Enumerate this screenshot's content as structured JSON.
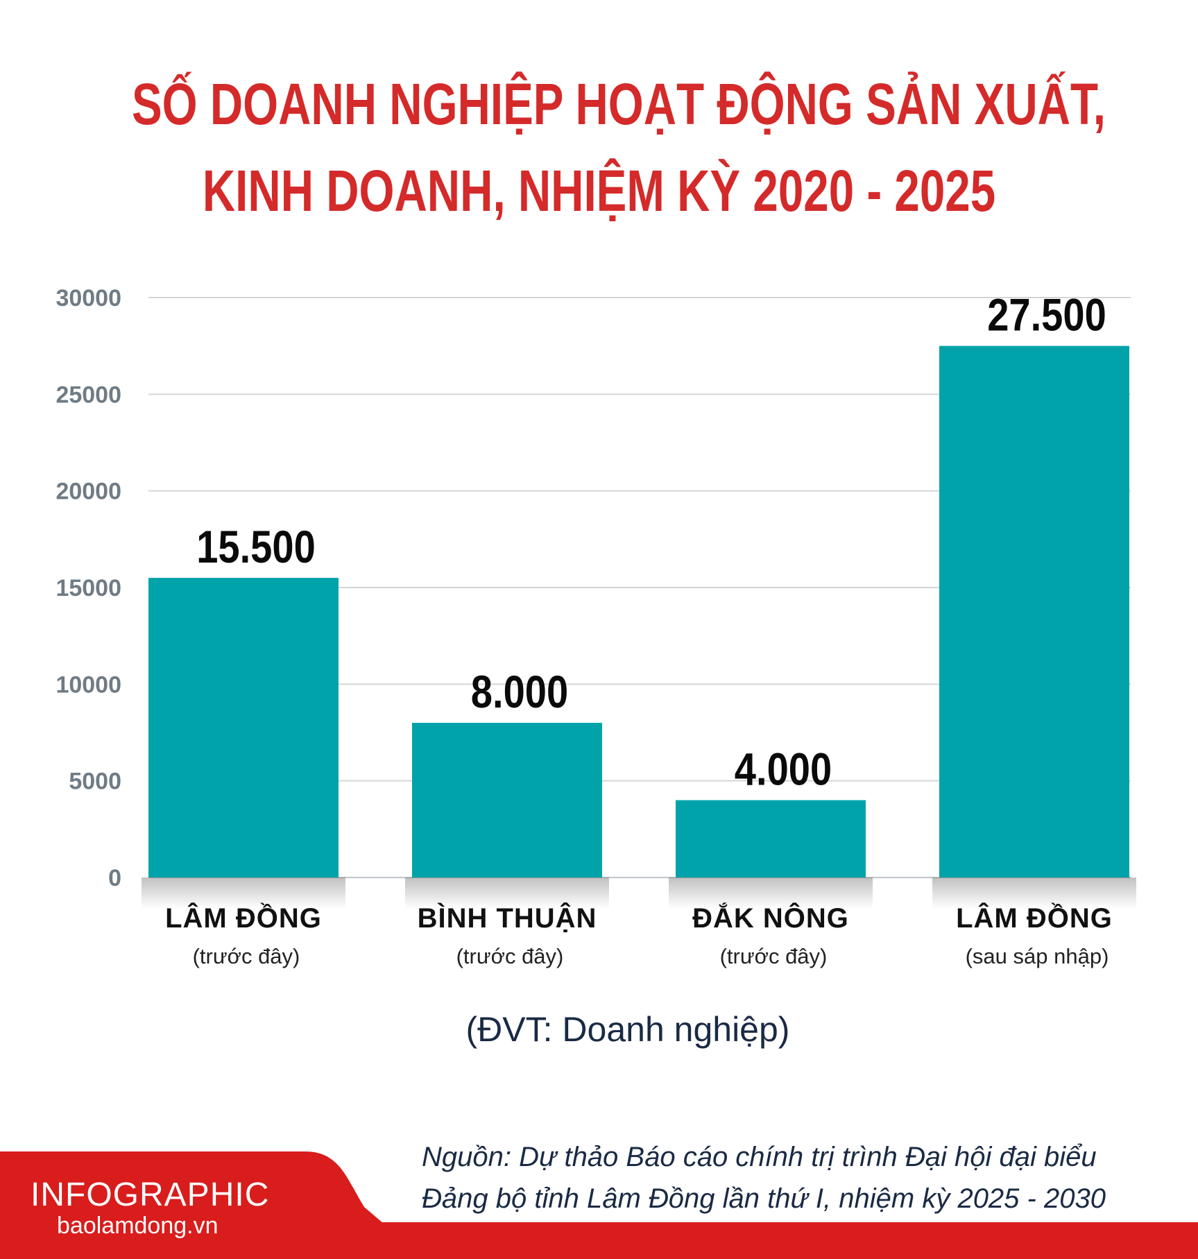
{
  "title": {
    "line1": "SỐ DOANH NGHIỆP HOẠT ĐỘNG SẢN XUẤT,",
    "line2": "KINH DOANH, NHIỆM KỲ 2020 - 2025"
  },
  "colors": {
    "title": "#d42a2a",
    "bar": "#00a3a9",
    "footer": "#d91c1c",
    "grid": "#d2d6da",
    "tick": "#6f7b85"
  },
  "chart_data": {
    "type": "bar",
    "title": "SỐ DOANH NGHIỆP HOẠT ĐỘNG SẢN XUẤT, KINH DOANH, NHIỆM KỲ 2020 - 2025",
    "categories": [
      "LÂM ĐỒNG",
      "BÌNH THUẬN",
      "ĐẮK NÔNG",
      "LÂM ĐỒNG"
    ],
    "category_notes": [
      "(trước đây)",
      "(trước đây)",
      "(trước đây)",
      "(sau sáp nhập)"
    ],
    "values": [
      15500,
      8000,
      4000,
      27500
    ],
    "data_labels": [
      "15.500",
      "8.000",
      "4.000",
      "27.500"
    ],
    "yticks": [
      "0",
      "5000",
      "10000",
      "15000",
      "20000",
      "25000",
      "30000"
    ],
    "ylim": [
      0,
      30000
    ],
    "grid": true,
    "legend": "none",
    "unit": "(ĐVT: Doanh nghiệp)"
  },
  "footer": {
    "brand": "INFOGRAPHIC",
    "site": "baolamdong.vn",
    "source_line1": "Nguồn: Dự thảo Báo cáo chính trị trình Đại hội đại biểu",
    "source_line2": "Đảng bộ tỉnh Lâm Đồng lần thứ I, nhiệm kỳ 2025 - 2030"
  }
}
